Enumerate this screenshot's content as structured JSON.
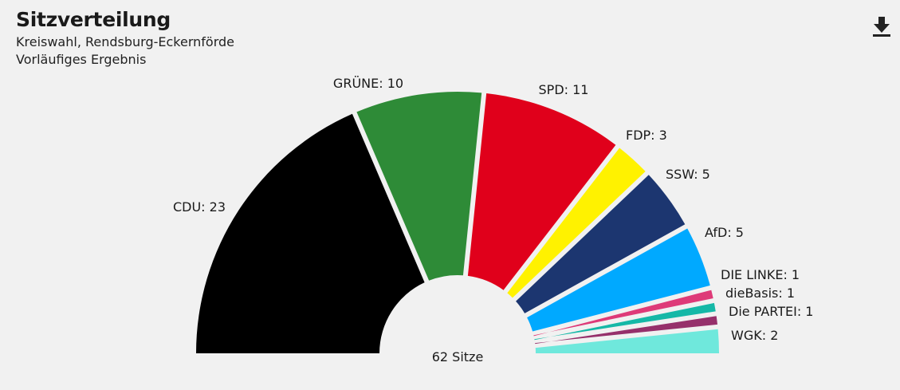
{
  "title": "Sitzverteilung",
  "subtitle_lines": [
    "Kreiswahl, Rendsburg-Eckernförde",
    "Vorläufiges Ergebnis"
  ],
  "download_icon": "download-icon",
  "chart_data": {
    "type": "pie",
    "variant": "parliament-semicircle",
    "total_label": "62 Sitze",
    "total": 62,
    "series": [
      {
        "name": "CDU",
        "value": 23,
        "label": "CDU: 23",
        "color": "#000000"
      },
      {
        "name": "GRÜNE",
        "value": 10,
        "label": "GRÜNE: 10",
        "color": "#2e8b37"
      },
      {
        "name": "SPD",
        "value": 11,
        "label": "SPD: 11",
        "color": "#e0001b"
      },
      {
        "name": "FDP",
        "value": 3,
        "label": "FDP: 3",
        "color": "#fff200"
      },
      {
        "name": "SSW",
        "value": 5,
        "label": "SSW: 5",
        "color": "#1c3670"
      },
      {
        "name": "AfD",
        "value": 5,
        "label": "AfD: 5",
        "color": "#00a9ff"
      },
      {
        "name": "DIE LINKE",
        "value": 1,
        "label": "DIE LINKE: 1",
        "color": "#de3a78"
      },
      {
        "name": "dieBasis",
        "value": 1,
        "label": "dieBasis: 1",
        "color": "#15b8a7"
      },
      {
        "name": "Die PARTEI",
        "value": 1,
        "label": "Die PARTEI: 1",
        "color": "#96306b"
      },
      {
        "name": "WGK",
        "value": 2,
        "label": "WGK: 2",
        "color": "#6fe8dc"
      }
    ]
  }
}
